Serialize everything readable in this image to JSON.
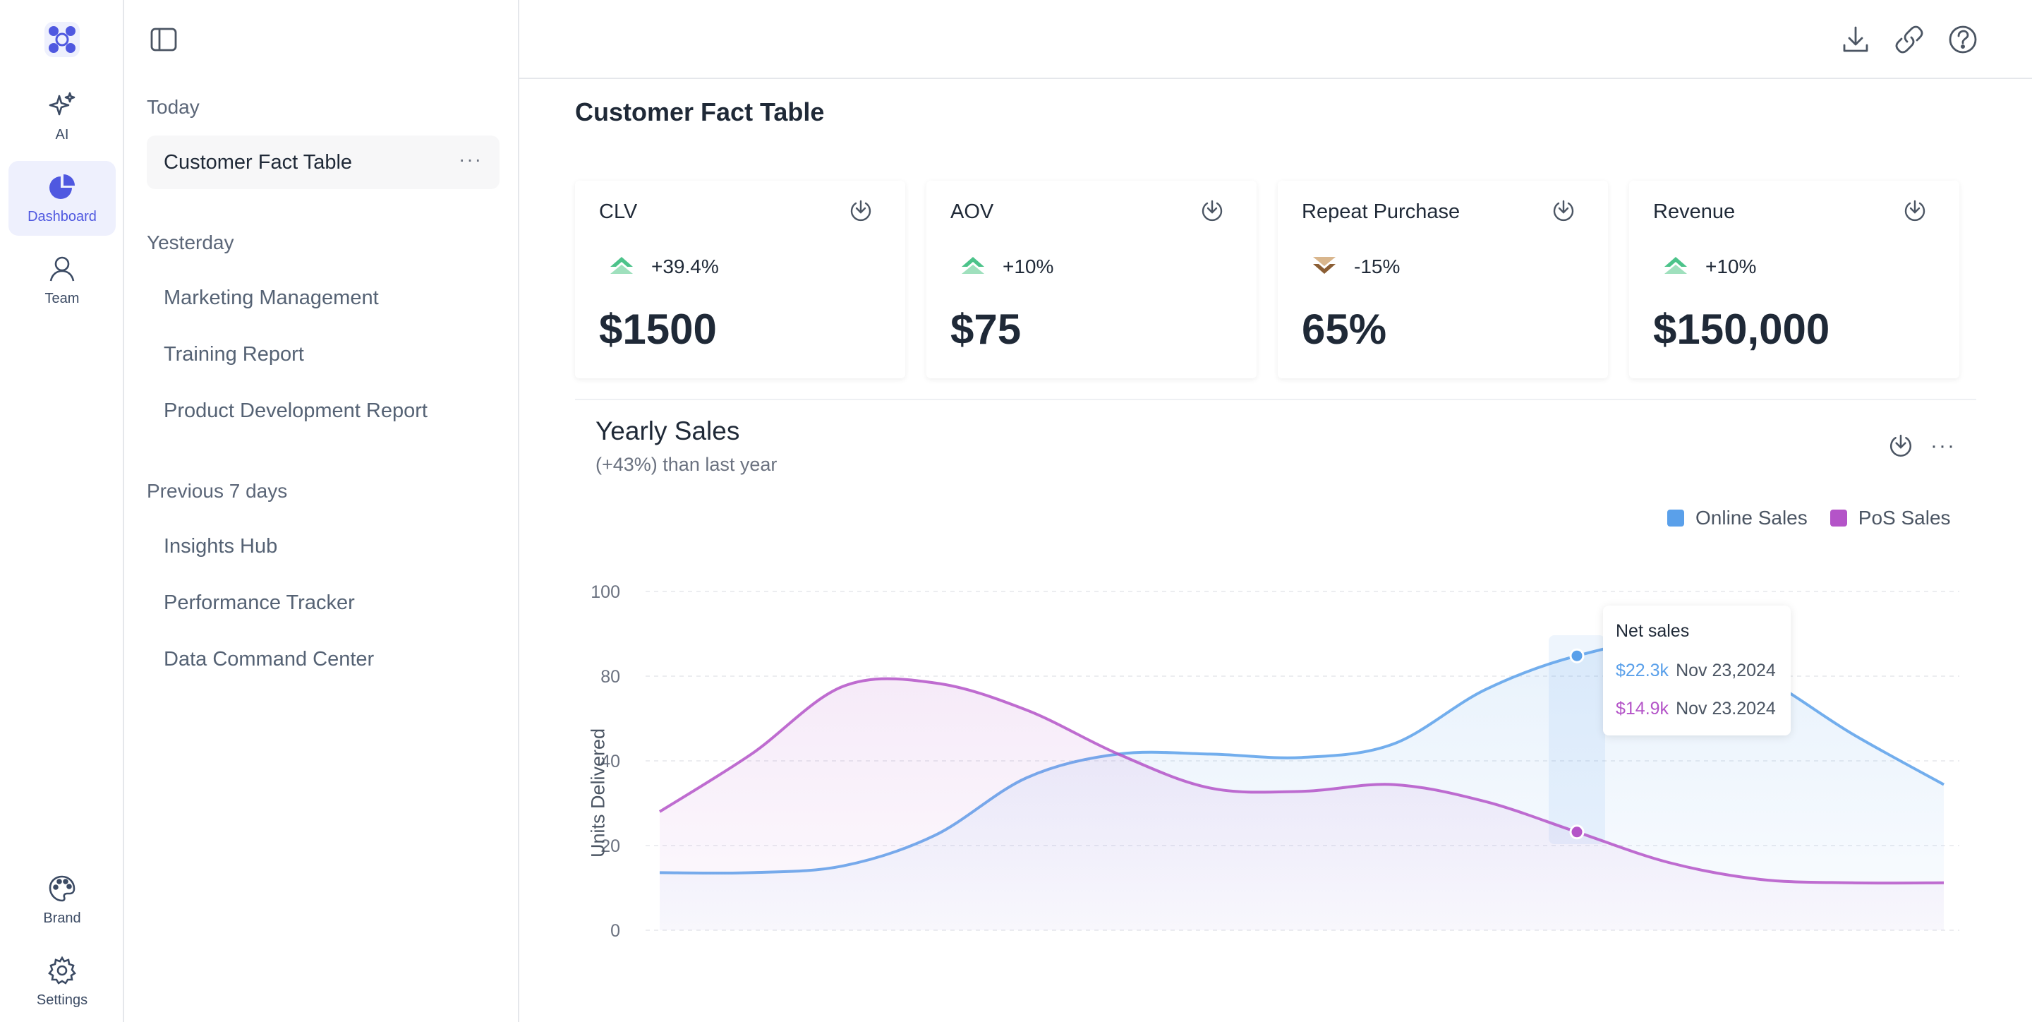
{
  "rail": {
    "items": [
      {
        "label": "AI",
        "icon": "sparkles-icon"
      },
      {
        "label": "Dashboard",
        "icon": "pie-chart-icon"
      },
      {
        "label": "Team",
        "icon": "user-icon"
      },
      {
        "label": "Brand",
        "icon": "palette-icon"
      },
      {
        "label": "Settings",
        "icon": "gear-icon"
      }
    ]
  },
  "history": {
    "today_label": "Today",
    "today_items": [
      "Customer Fact Table"
    ],
    "yesterday_label": "Yesterday",
    "yesterday_items": [
      "Marketing Management",
      "Training Report",
      "Product Development Report"
    ],
    "previous_label": "Previous 7 days",
    "previous_items": [
      "Insights Hub",
      "Performance Tracker",
      "Data Command Center"
    ],
    "more_label": "···"
  },
  "main": {
    "title": "Customer Fact Table",
    "kpis": [
      {
        "title": "CLV",
        "change": "+39.4%",
        "trend": "up",
        "value": "$1500"
      },
      {
        "title": "AOV",
        "change": "+10%",
        "trend": "up",
        "value": "$75"
      },
      {
        "title": "Repeat Purchase",
        "change": "-15%",
        "trend": "down",
        "value": "65%"
      },
      {
        "title": "Revenue",
        "change": "+10%",
        "trend": "up",
        "value": "$150,000"
      }
    ],
    "chart_title": "Yearly Sales",
    "chart_subtitle": "(+43%) than last year",
    "more_label": "···",
    "tooltip": {
      "title": "Net sales",
      "rows": [
        {
          "value": "$22.3k",
          "date": "Nov 23,2024",
          "color": "#5aa0ea"
        },
        {
          "value": "$14.9k",
          "date": "Nov 23.2024",
          "color": "#b454c8"
        }
      ]
    }
  },
  "colors": {
    "accent": "#4f58e0",
    "online": "#5aa0ea",
    "pos": "#b454c8",
    "up": "#4cc38a",
    "down": "#8b5e34"
  },
  "chart_data": {
    "type": "area",
    "ylabel": "Units Delivered",
    "yticks": [
      "100",
      "80",
      "40",
      "20",
      "0"
    ],
    "ylim": [
      0,
      100
    ],
    "grid": true,
    "legend_position": "top-right",
    "x": [
      0,
      1,
      2,
      3,
      4,
      5,
      6,
      7,
      8,
      9,
      10,
      11,
      12,
      13,
      14
    ],
    "series": [
      {
        "name": "Online Sales",
        "values": [
          17,
          17,
          19,
          28,
          45,
          52,
          52,
          51,
          55,
          71,
          81,
          85,
          75,
          58,
          43
        ]
      },
      {
        "name": "PoS Sales",
        "values": [
          35,
          52,
          72,
          73,
          65,
          52,
          42,
          41,
          43,
          38,
          29,
          20,
          15,
          14,
          14
        ]
      }
    ],
    "highlight_index": 10
  }
}
